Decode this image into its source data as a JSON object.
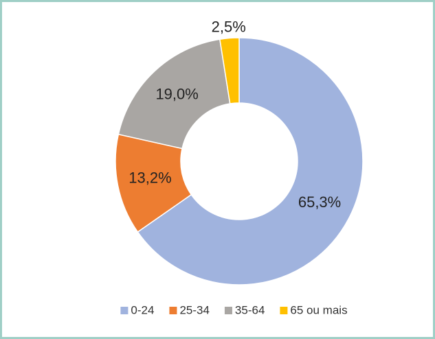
{
  "chart_data": {
    "type": "donut",
    "categories": [
      "0-24",
      "25-34",
      "35-64",
      "65 ou mais"
    ],
    "values": [
      65.3,
      13.2,
      19.0,
      2.5
    ],
    "value_labels": [
      "65,3%",
      "13,2%",
      "19,0%",
      "2,5%"
    ],
    "colors": [
      "#a0b3de",
      "#ed7d31",
      "#a9a6a3",
      "#ffc000"
    ],
    "legend": "bottom"
  }
}
